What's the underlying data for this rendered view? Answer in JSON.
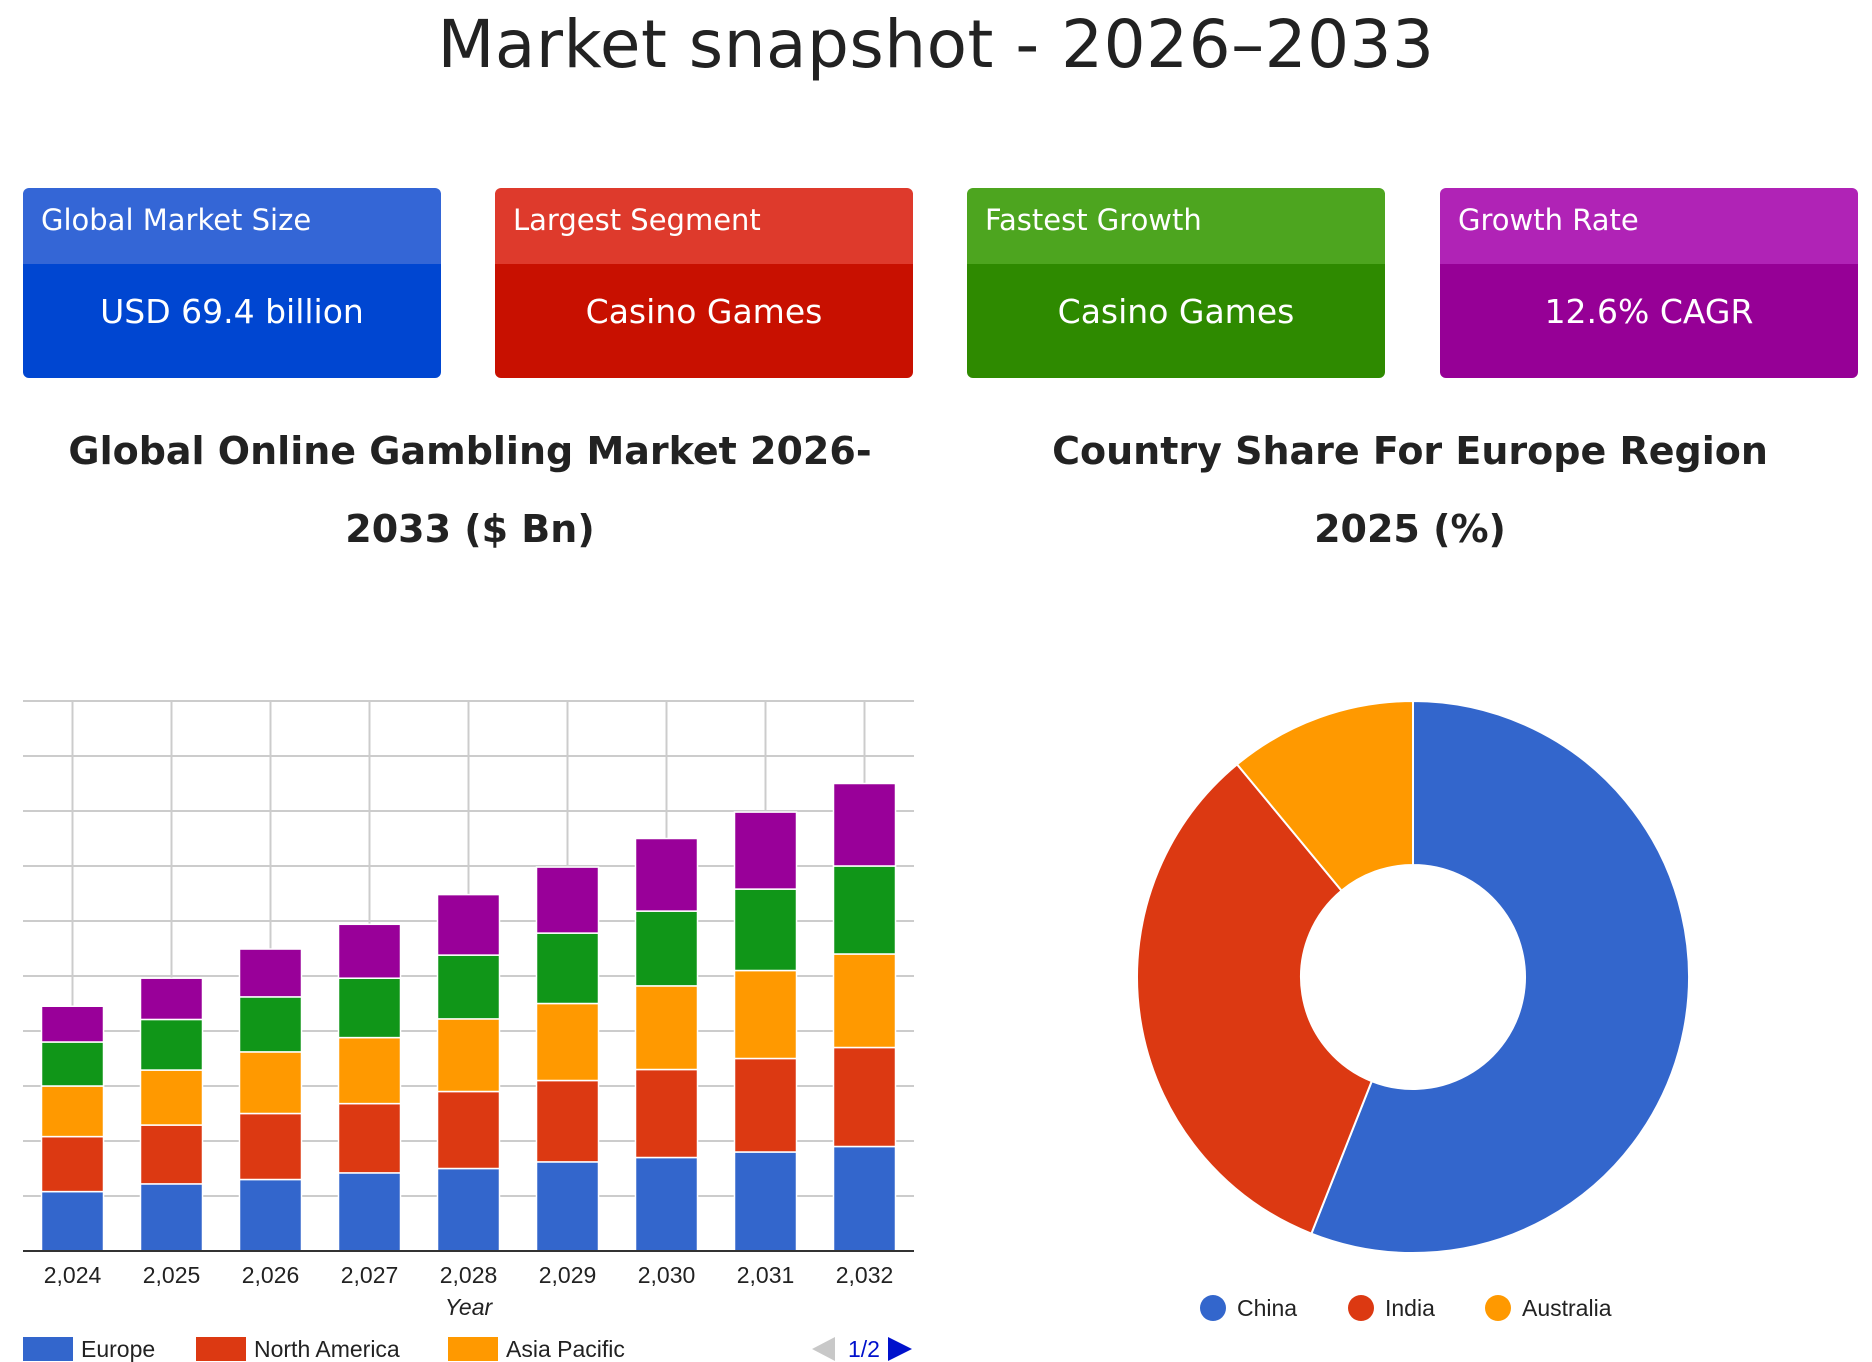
{
  "page_title": "Market snapshot - 2026–2033",
  "cards": [
    {
      "label": "Global Market Size",
      "value": "USD 69.4 billion",
      "head_color": "#3466d6",
      "body_color": "#0046d1"
    },
    {
      "label": "Largest Segment",
      "value": "Casino Games",
      "head_color": "#de3a2c",
      "body_color": "#c81000"
    },
    {
      "label": "Fastest Growth",
      "value": "Casino Games",
      "head_color": "#4da51f",
      "body_color": "#2e8a00"
    },
    {
      "label": "Growth Rate",
      "value": "12.6% CAGR",
      "head_color": "#b023b6",
      "body_color": "#960096"
    }
  ],
  "bar_chart_title": "Global Online Gambling Market 2026-2033 ($ Bn)",
  "pie_chart_title": "Country Share For Europe Region 2025 (%)",
  "chart_data": [
    {
      "type": "bar",
      "stacked": true,
      "categories": [
        "2,024",
        "2,025",
        "2,026",
        "2,027",
        "2,028",
        "2,029",
        "2,030",
        "2,031",
        "2,032"
      ],
      "xlabel": "Year",
      "ylim": [
        0,
        100
      ],
      "grid": true,
      "legend_position": "bottom",
      "legend_page": "1/2",
      "series": [
        {
          "name": "Europe",
          "color": "#3366cc",
          "values": [
            10.8,
            12.2,
            13.0,
            14.2,
            15.0,
            16.2,
            17.0,
            18.0,
            19.0
          ]
        },
        {
          "name": "North America",
          "color": "#dc3912",
          "values": [
            10.0,
            10.7,
            12.0,
            12.6,
            14.0,
            14.8,
            16.0,
            17.0,
            18.0
          ]
        },
        {
          "name": "Asia Pacific",
          "color": "#ff9900",
          "values": [
            9.2,
            10.0,
            11.2,
            12.0,
            13.2,
            14.0,
            15.2,
            16.0,
            17.0
          ]
        },
        {
          "name": "",
          "color": "#109618",
          "values": [
            8.0,
            9.2,
            10.0,
            10.8,
            11.6,
            12.8,
            13.6,
            14.8,
            16.0
          ]
        },
        {
          "name": "",
          "color": "#990099",
          "values": [
            6.5,
            7.5,
            8.7,
            9.8,
            11.0,
            12.0,
            13.2,
            14.0,
            15.0
          ]
        }
      ]
    },
    {
      "type": "pie",
      "donut": true,
      "legend_position": "bottom",
      "slices": [
        {
          "name": "China",
          "value": 56,
          "color": "#3366cc"
        },
        {
          "name": "India",
          "value": 33,
          "color": "#dc3912"
        },
        {
          "name": "Australia",
          "value": 11,
          "color": "#ff9900"
        }
      ]
    }
  ]
}
